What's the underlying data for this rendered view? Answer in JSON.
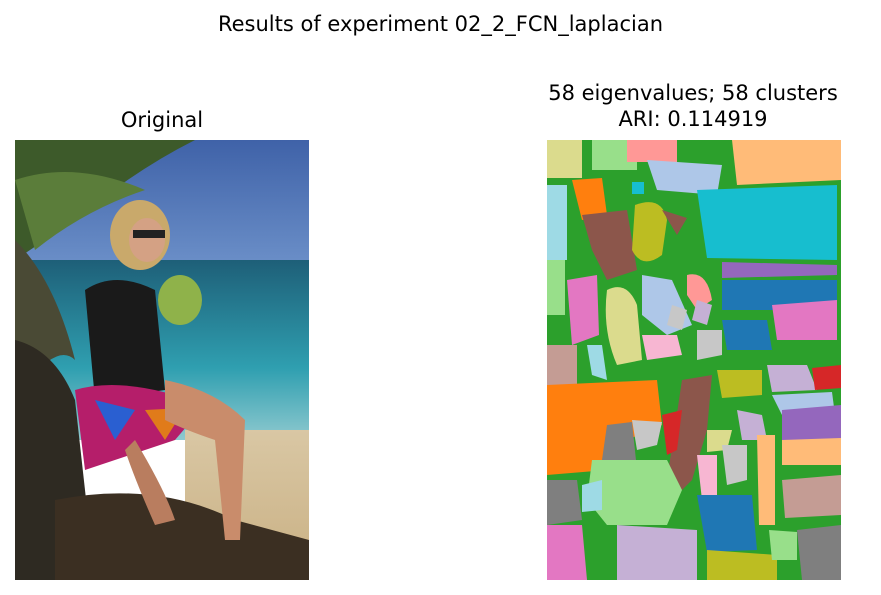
{
  "figure": {
    "suptitle": "Results of experiment 02_2_FCN_laplacian"
  },
  "left_panel": {
    "title": "Original"
  },
  "right_panel": {
    "title_line1": "58 eigenvalues; 58 clusters",
    "title_line2": "ARI: 0.114919"
  },
  "palette": {
    "green": "#2ca02c",
    "orange": "#ff7f0e",
    "brown": "#8c564b",
    "pink": "#e377c2",
    "cyan": "#17becf",
    "blue": "#1f77b4",
    "purple": "#9467bd",
    "olive": "#bcbd22",
    "red": "#d62728",
    "gray": "#7f7f7f"
  }
}
